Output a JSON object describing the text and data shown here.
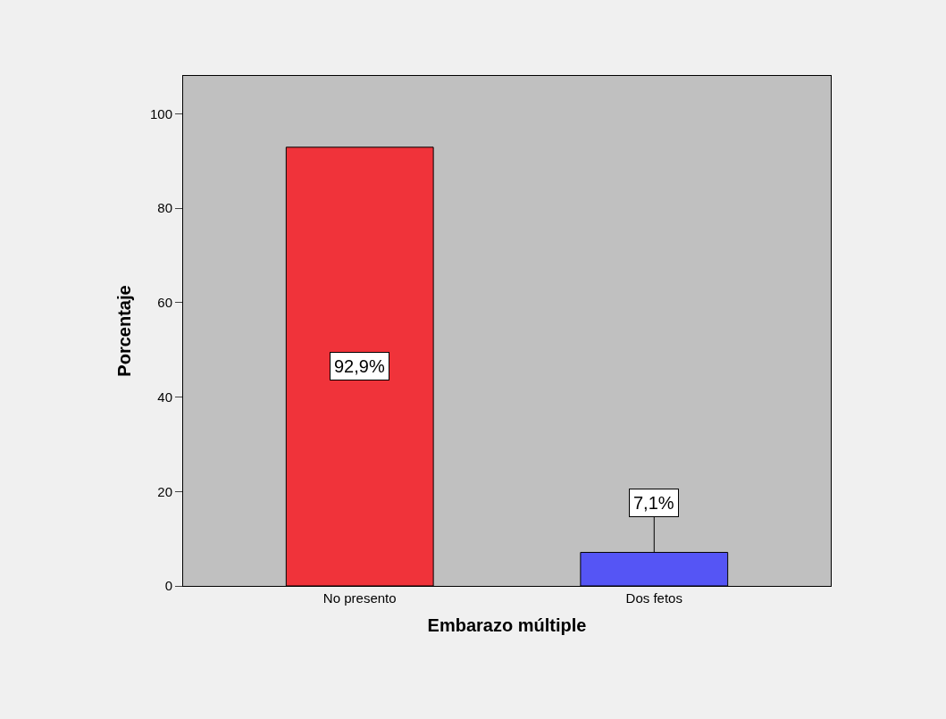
{
  "chart_data": {
    "type": "bar",
    "xlabel": "Embarazo múltiple",
    "ylabel": "Porcentaje",
    "categories": [
      "No presento",
      "Dos fetos"
    ],
    "values": [
      92.9,
      7.1
    ],
    "colors": [
      "#f0333a",
      "#5555f5"
    ],
    "value_labels": [
      "92,9%",
      "7,1%"
    ],
    "ylim": [
      0,
      108
    ],
    "yticks": [
      0,
      20,
      40,
      60,
      80,
      100
    ],
    "grid": false,
    "legend": false
  }
}
